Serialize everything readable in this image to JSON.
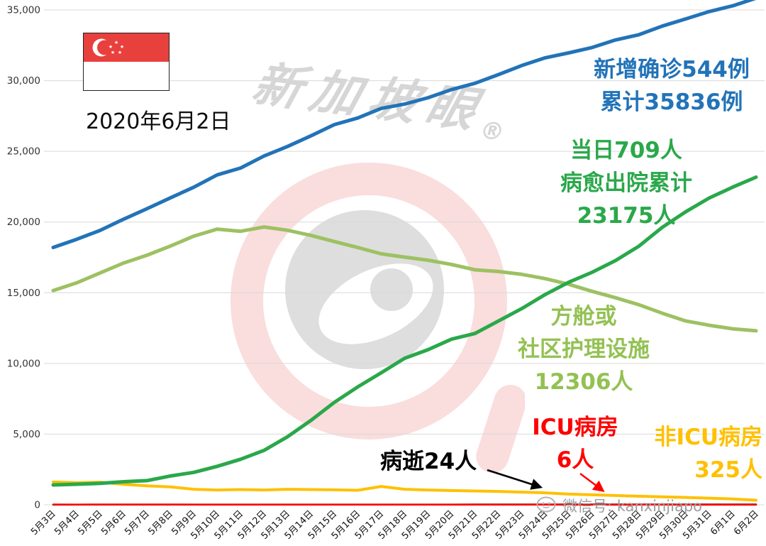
{
  "header": {
    "date": "2020年6月2日"
  },
  "annotations": {
    "confirmed_line1": "新增确诊544例",
    "confirmed_line2": "累计35836例",
    "recovered_line1": "当日709人",
    "recovered_line2": "病愈出院累计",
    "recovered_line3": "23175人",
    "community_line1": "方舱或",
    "community_line2": "社区护理设施",
    "community_line3": "12306人",
    "icu_line1": "ICU病房",
    "icu_line2": "6人",
    "non_icu_line1": "非ICU病房",
    "non_icu_line2": "325人",
    "deaths_label": "病逝24人"
  },
  "watermark": {
    "text": "新加坡眼",
    "reg": "®"
  },
  "footer": {
    "wechat": "微信号: kanxinjiapo"
  },
  "chart_data": {
    "type": "line",
    "title": "",
    "xlabel": "",
    "ylabel": "",
    "ylim": [
      0,
      35000
    ],
    "ytick_step": 5000,
    "ytick_labels": [
      "0",
      "5,000",
      "10,000",
      "15,000",
      "20,000",
      "25,000",
      "30,000",
      "35,000"
    ],
    "grid": true,
    "legend_position": "inline-annotations",
    "categories": [
      "5月3日",
      "5月4日",
      "5月5日",
      "5月6日",
      "5月7日",
      "5月8日",
      "5月9日",
      "5月10日",
      "5月11日",
      "5月12日",
      "5月13日",
      "5月14日",
      "5月15日",
      "5月16日",
      "5月17日",
      "5月18日",
      "5月19日",
      "5月20日",
      "5月21日",
      "5月22日",
      "5月23日",
      "5月24日",
      "5月25日",
      "5月26日",
      "5月27日",
      "5月28日",
      "5月29日",
      "5月30日",
      "5月31日",
      "6月1日",
      "6月2日"
    ],
    "series": [
      {
        "key": "community",
        "name": "方舱或社区护理设施",
        "color": "#9dc162",
        "width": 5,
        "values": [
          15150,
          15700,
          16400,
          17100,
          17650,
          18300,
          19000,
          19500,
          19350,
          19650,
          19420,
          19050,
          18620,
          18200,
          17750,
          17520,
          17300,
          17000,
          16620,
          16500,
          16300,
          16000,
          15600,
          15100,
          14650,
          14150,
          13550,
          13000,
          12700,
          12450,
          12306
        ]
      },
      {
        "key": "confirmed",
        "name": "累计确诊",
        "color": "#2273b8",
        "width": 5,
        "values": [
          18205,
          18778,
          19410,
          20198,
          20939,
          21707,
          22460,
          23336,
          23822,
          24671,
          25346,
          26098,
          26891,
          27356,
          28038,
          28343,
          28794,
          29364,
          29812,
          30426,
          31068,
          31616,
          31960,
          32343,
          32876,
          33249,
          33860,
          34366,
          34884,
          35292,
          35836
        ]
      },
      {
        "key": "non_icu",
        "name": "非ICU病房",
        "color": "#ffc000",
        "width": 4,
        "values": [
          1613,
          1560,
          1600,
          1450,
          1340,
          1270,
          1100,
          1050,
          1080,
          1050,
          1100,
          1080,
          1060,
          1030,
          1300,
          1100,
          1050,
          1010,
          980,
          950,
          900,
          850,
          760,
          710,
          660,
          610,
          560,
          520,
          470,
          410,
          325
        ]
      },
      {
        "key": "recovered",
        "name": "病愈出院累计",
        "color": "#2aa84a",
        "width": 5,
        "values": [
          1408,
          1457,
          1519,
          1634,
          1712,
          2040,
          2296,
          2721,
          3225,
          3851,
          4809,
          5973,
          7248,
          8342,
          9340,
          10365,
          10970,
          11714,
          12117,
          12995,
          13882,
          14876,
          15738,
          16444,
          17276,
          18294,
          19631,
          20727,
          21699,
          22466,
          23175
        ]
      },
      {
        "key": "deaths",
        "name": "病逝",
        "color": "#000000",
        "width": 2.5,
        "values": [
          17,
          17,
          18,
          18,
          18,
          20,
          20,
          21,
          21,
          21,
          21,
          21,
          21,
          21,
          22,
          22,
          22,
          22,
          23,
          23,
          23,
          23,
          23,
          23,
          23,
          23,
          23,
          23,
          23,
          24,
          24
        ]
      },
      {
        "key": "icu",
        "name": "ICU病房",
        "color": "#ff0000",
        "width": 2.5,
        "values": [
          23,
          22,
          21,
          20,
          19,
          18,
          17,
          16,
          15,
          14,
          13,
          12,
          11,
          10,
          9,
          9,
          8,
          8,
          8,
          8,
          8,
          8,
          7,
          7,
          7,
          8,
          8,
          7,
          7,
          6,
          6
        ]
      }
    ]
  }
}
